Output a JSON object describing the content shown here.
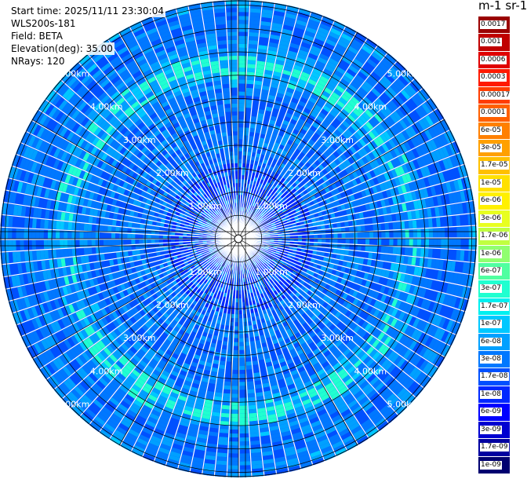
{
  "header": {
    "start_time": "Start time: 2025/11/11 23:30:04",
    "instrument": "WLS200s-181",
    "field": "Field: BETA",
    "elevation": "Elevation(deg): 35.00",
    "nrays": "NRays: 120"
  },
  "colorbar": {
    "title": "m-1 sr-1",
    "labels": [
      "0.0017",
      "0.001",
      "0.0006",
      "0.0003",
      "0.00017",
      "0.0001",
      "6e-05",
      "3e-05",
      "1.7e-05",
      "1e-05",
      "6e-06",
      "3e-06",
      "1.7e-06",
      "1e-06",
      "6e-07",
      "3e-07",
      "1.7e-07",
      "1e-07",
      "6e-08",
      "3e-08",
      "1.7e-08",
      "1e-08",
      "6e-09",
      "3e-09",
      "1.7e-09",
      "1e-09"
    ],
    "colors": [
      "#9a0000",
      "#c00000",
      "#e00000",
      "#ff1a00",
      "#ff3d00",
      "#ff6000",
      "#ff8000",
      "#ffa000",
      "#ffc000",
      "#ffe000",
      "#fff000",
      "#e8ff20",
      "#c0ff40",
      "#90ff70",
      "#50ffa0",
      "#20ffd0",
      "#00f0f0",
      "#00c8ff",
      "#00a0ff",
      "#0078ff",
      "#0050ff",
      "#0028ff",
      "#0000ff",
      "#0000d0",
      "#0000a0",
      "#000070"
    ]
  },
  "chart_data": {
    "type": "heatmap",
    "projection": "polar PPI",
    "nrays": 120,
    "range_rings_km": [
      1,
      2,
      3,
      4,
      5
    ],
    "ring_labels": [
      "1.00km",
      "2.00km",
      "3.00km",
      "4.00km",
      "5.00km"
    ],
    "value_range": [
      1e-09,
      0.0017
    ],
    "dominant_colors": [
      "#0050ff",
      "#0078ff",
      "#00a0ff",
      "#00c8ff",
      "#20ffd0"
    ],
    "grid": true
  }
}
